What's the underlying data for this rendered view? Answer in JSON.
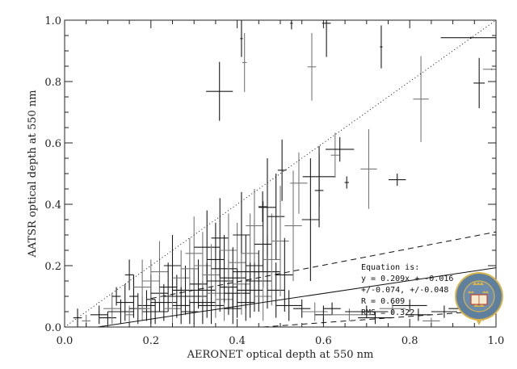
{
  "chart_data": {
    "type": "scatter",
    "title": "",
    "xlabel": "AERONET optical depth at 550 nm",
    "ylabel": "AATSR optical depth at 550 nm",
    "xlim": [
      0,
      1
    ],
    "ylim": [
      0,
      1
    ],
    "xticks": [
      "0.0",
      "0.2",
      "0.4",
      "0.6",
      "0.8",
      "1.0"
    ],
    "yticks": [
      "0.0",
      "0.2",
      "0.4",
      "0.6",
      "0.8",
      "1.0"
    ],
    "grid": false,
    "point_format": [
      "x",
      "y",
      "x_error",
      "y_error"
    ],
    "points": [
      [
        0.03,
        0.03,
        0.01,
        0.03
      ],
      [
        0.05,
        0.02,
        0.01,
        0.02
      ],
      [
        0.08,
        0.04,
        0.02,
        0.03
      ],
      [
        0.1,
        0.03,
        0.02,
        0.02
      ],
      [
        0.11,
        0.06,
        0.02,
        0.05
      ],
      [
        0.13,
        0.05,
        0.03,
        0.04
      ],
      [
        0.14,
        0.08,
        0.02,
        0.06
      ],
      [
        0.15,
        0.04,
        0.01,
        0.03
      ],
      [
        0.16,
        0.1,
        0.01,
        0.07
      ],
      [
        0.17,
        0.06,
        0.02,
        0.05
      ],
      [
        0.18,
        0.13,
        0.02,
        0.09
      ],
      [
        0.19,
        0.07,
        0.02,
        0.05
      ],
      [
        0.2,
        0.09,
        0.01,
        0.08
      ],
      [
        0.2,
        0.15,
        0.02,
        0.07
      ],
      [
        0.21,
        0.05,
        0.03,
        0.04
      ],
      [
        0.22,
        0.11,
        0.02,
        0.06
      ],
      [
        0.22,
        0.18,
        0.02,
        0.1
      ],
      [
        0.23,
        0.08,
        0.03,
        0.06
      ],
      [
        0.24,
        0.13,
        0.02,
        0.08
      ],
      [
        0.25,
        0.06,
        0.02,
        0.05
      ],
      [
        0.25,
        0.2,
        0.02,
        0.1
      ],
      [
        0.26,
        0.1,
        0.03,
        0.07
      ],
      [
        0.27,
        0.16,
        0.02,
        0.09
      ],
      [
        0.27,
        0.07,
        0.02,
        0.06
      ],
      [
        0.28,
        0.12,
        0.03,
        0.08
      ],
      [
        0.29,
        0.19,
        0.02,
        0.1
      ],
      [
        0.29,
        0.05,
        0.02,
        0.04
      ],
      [
        0.3,
        0.1,
        0.03,
        0.09
      ],
      [
        0.3,
        0.24,
        0.02,
        0.12
      ],
      [
        0.31,
        0.14,
        0.02,
        0.08
      ],
      [
        0.32,
        0.08,
        0.03,
        0.07
      ],
      [
        0.32,
        0.2,
        0.02,
        0.11
      ],
      [
        0.33,
        0.12,
        0.02,
        0.09
      ],
      [
        0.33,
        0.26,
        0.03,
        0.12
      ],
      [
        0.34,
        0.17,
        0.02,
        0.1
      ],
      [
        0.34,
        0.07,
        0.03,
        0.06
      ],
      [
        0.35,
        0.22,
        0.02,
        0.12
      ],
      [
        0.35,
        0.11,
        0.02,
        0.08
      ],
      [
        0.36,
        0.15,
        0.03,
        0.1
      ],
      [
        0.36,
        0.29,
        0.02,
        0.13
      ],
      [
        0.37,
        0.09,
        0.02,
        0.07
      ],
      [
        0.37,
        0.19,
        0.03,
        0.11
      ],
      [
        0.38,
        0.13,
        0.02,
        0.09
      ],
      [
        0.38,
        0.25,
        0.02,
        0.12
      ],
      [
        0.39,
        0.16,
        0.03,
        0.1
      ],
      [
        0.39,
        0.06,
        0.02,
        0.05
      ],
      [
        0.4,
        0.21,
        0.02,
        0.13
      ],
      [
        0.4,
        0.11,
        0.03,
        0.08
      ],
      [
        0.41,
        0.3,
        0.02,
        0.14
      ],
      [
        0.41,
        0.14,
        0.02,
        0.1
      ],
      [
        0.42,
        0.18,
        0.03,
        0.12
      ],
      [
        0.42,
        0.08,
        0.02,
        0.06
      ],
      [
        0.43,
        0.24,
        0.02,
        0.13
      ],
      [
        0.43,
        0.12,
        0.03,
        0.09
      ],
      [
        0.44,
        0.2,
        0.02,
        0.15
      ],
      [
        0.44,
        0.33,
        0.02,
        0.12
      ],
      [
        0.45,
        0.15,
        0.03,
        0.1
      ],
      [
        0.46,
        0.27,
        0.02,
        0.14
      ],
      [
        0.46,
        0.1,
        0.02,
        0.08
      ],
      [
        0.47,
        0.39,
        0.02,
        0.16
      ],
      [
        0.47,
        0.18,
        0.03,
        0.12
      ],
      [
        0.48,
        0.22,
        0.02,
        0.15
      ],
      [
        0.49,
        0.36,
        0.02,
        0.14
      ],
      [
        0.49,
        0.12,
        0.02,
        0.09
      ],
      [
        0.5,
        0.28,
        0.02,
        0.18
      ],
      [
        0.51,
        0.17,
        0.02,
        0.12
      ],
      [
        0.52,
        0.07,
        0.03,
        0.05
      ],
      [
        0.53,
        0.33,
        0.02,
        0.18
      ],
      [
        0.55,
        0.06,
        0.02,
        0.03
      ],
      [
        0.57,
        0.35,
        0.02,
        0.2
      ],
      [
        0.58,
        0.05,
        0.03,
        0.03
      ],
      [
        0.6,
        0.04,
        0.02,
        0.03
      ],
      [
        0.62,
        0.06,
        0.02,
        0.02
      ],
      [
        0.66,
        0.04,
        0.06,
        0.02
      ],
      [
        0.7,
        0.05,
        0.05,
        0.02
      ],
      [
        0.72,
        0.03,
        0.04,
        0.02
      ],
      [
        0.76,
        0.06,
        0.03,
        0.02
      ],
      [
        0.8,
        0.07,
        0.04,
        0.02
      ],
      [
        0.82,
        0.04,
        0.03,
        0.02
      ],
      [
        0.85,
        0.02,
        0.02,
        0.01
      ],
      [
        0.88,
        0.05,
        0.03,
        0.02
      ],
      [
        0.93,
        0.06,
        0.04,
        0.02
      ],
      [
        0.97,
        0.05,
        0.03,
        0.03
      ],
      [
        0.15,
        0.17,
        0.01,
        0.05
      ],
      [
        0.12,
        0.1,
        0.01,
        0.03
      ],
      [
        0.18,
        0.06,
        0.02,
        0.04
      ],
      [
        0.459,
        0.392,
        0.01,
        0.05
      ],
      [
        0.504,
        0.511,
        0.01,
        0.1
      ],
      [
        0.543,
        0.469,
        0.02,
        0.1
      ],
      [
        0.59,
        0.49,
        0.038,
        0.1
      ],
      [
        0.59,
        0.445,
        0.01,
        0.12
      ],
      [
        0.627,
        0.56,
        0.01,
        0.073
      ],
      [
        0.638,
        0.579,
        0.033,
        0.04
      ],
      [
        0.654,
        0.471,
        0.005,
        0.02
      ],
      [
        0.705,
        0.515,
        0.019,
        0.13
      ],
      [
        0.771,
        0.48,
        0.02,
        0.02
      ],
      [
        0.359,
        0.768,
        0.031,
        0.096
      ],
      [
        0.417,
        0.862,
        0.005,
        0.096
      ],
      [
        0.41,
        0.94,
        0.003,
        0.06
      ],
      [
        0.526,
        0.99,
        0.003,
        0.02
      ],
      [
        0.573,
        0.848,
        0.01,
        0.11
      ],
      [
        0.607,
        0.99,
        0.01,
        0.11
      ],
      [
        0.734,
        0.913,
        0.003,
        0.07
      ],
      [
        0.826,
        0.743,
        0.018,
        0.14
      ],
      [
        0.942,
        0.943,
        0.07,
        0.003
      ],
      [
        0.961,
        0.795,
        0.013,
        0.082
      ],
      [
        0.99,
        0.84,
        0.02,
        0.003
      ]
    ],
    "lines": [
      {
        "name": "one-to-one",
        "style": "dotted",
        "x": [
          0,
          1
        ],
        "y": [
          0,
          1
        ]
      },
      {
        "name": "fit",
        "style": "solid",
        "slope": 0.209,
        "intercept": -0.016
      },
      {
        "name": "upper-bound",
        "style": "dashed",
        "x": [
          0.2,
          1
        ],
        "y": [
          0.093,
          0.31
        ]
      },
      {
        "name": "lower-bound",
        "style": "dashed",
        "x": [
          0.46,
          1
        ],
        "y": [
          0,
          0.055
        ]
      }
    ],
    "annotation": [
      "Equation is:",
      "y = 0.209x + -0.016",
      "+/-0.074, +/-0.048",
      "R = 0.609",
      "RMS = 0.322"
    ],
    "logo_text": "UNIVERSITY OF OXFORD",
    "colors": {
      "axis": "#222222",
      "marks": "#1a1a1a",
      "logo_blue": "#5f7f9f",
      "logo_gold": "#d8b44a"
    }
  }
}
